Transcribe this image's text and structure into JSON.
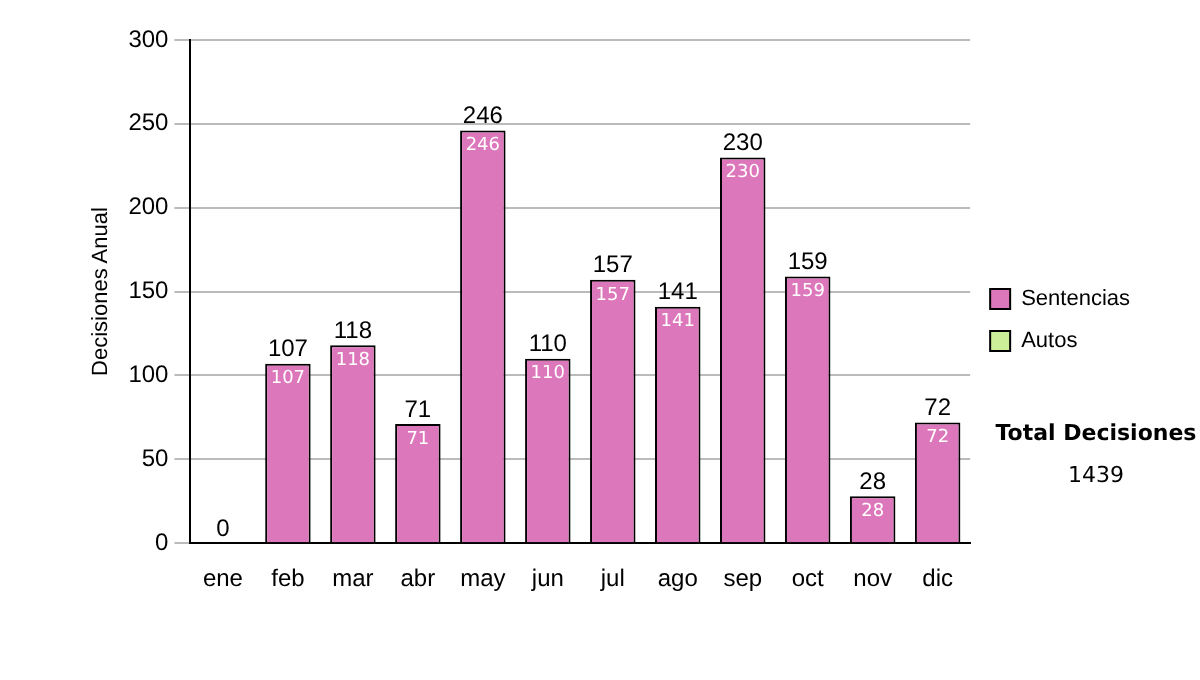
{
  "chart_data": {
    "type": "bar",
    "ylabel": "Decisiones Anual",
    "stacked": true,
    "categories": [
      "ene",
      "feb",
      "mar",
      "abr",
      "may",
      "jun",
      "jul",
      "ago",
      "sep",
      "oct",
      "nov",
      "dic"
    ],
    "series": [
      {
        "name": "Sentencias",
        "color": "#dd77bb",
        "values": [
          0,
          107,
          118,
          71,
          246,
          110,
          157,
          141,
          230,
          159,
          28,
          72
        ],
        "value_labels": [
          null,
          "107",
          "118",
          "71",
          "246",
          "110",
          "157",
          "141",
          "230",
          "159",
          "28",
          "72"
        ]
      },
      {
        "name": "Autos",
        "color": "#ccee99",
        "values": [
          0,
          0,
          0,
          0,
          0,
          0,
          0,
          0,
          0,
          0,
          0,
          0
        ]
      }
    ],
    "totals": [
      "0",
      "107",
      "118",
      "71",
      "246",
      "110",
      "157",
      "141",
      "230",
      "159",
      "28",
      "72"
    ],
    "ylim": [
      0,
      300
    ],
    "yticks": [
      0,
      50,
      100,
      150,
      200,
      250,
      300
    ],
    "grid": "y",
    "legend": "right",
    "annotations": [
      "Total Decisiones",
      "1439"
    ]
  }
}
